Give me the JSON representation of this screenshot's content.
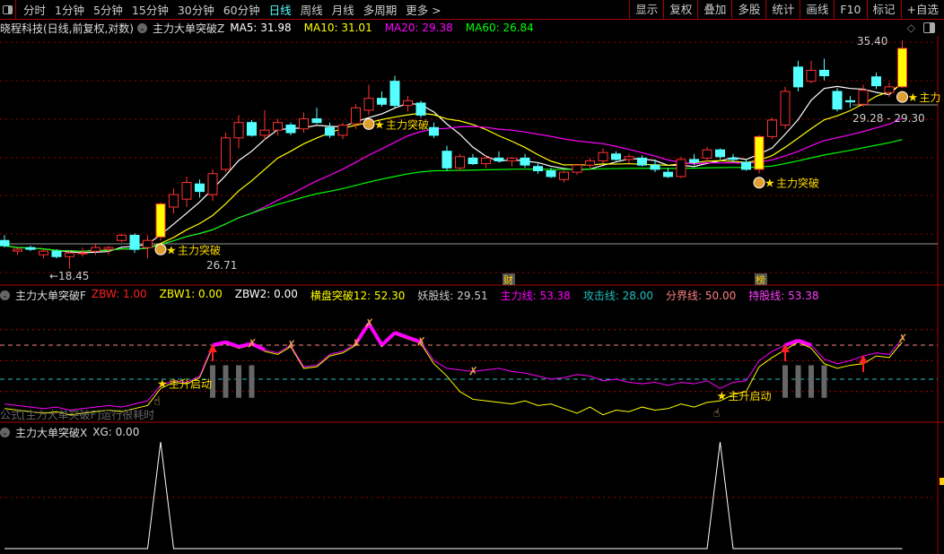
{
  "toolbar": {
    "periods": [
      "分时",
      "1分钟",
      "5分钟",
      "15分钟",
      "30分钟",
      "60分钟",
      "日线",
      "周线",
      "月线",
      "多周期",
      "更多 >"
    ],
    "active_period": "日线",
    "buttons": [
      "显示",
      "复权",
      "叠加",
      "多股",
      "统计",
      "画线",
      "F10",
      "标记",
      "+自选"
    ]
  },
  "main_header": {
    "stock": "晓程科技(日线,前复权,对数)",
    "indicator": "主力大单突破Z",
    "ma": [
      {
        "label": "MA5: 31.98",
        "color": "#ffffff"
      },
      {
        "label": "MA10: 31.01",
        "color": "#ffff00"
      },
      {
        "label": "MA20: 29.38",
        "color": "#ff00ff"
      },
      {
        "label": "MA60: 26.84",
        "color": "#00ff00"
      }
    ]
  },
  "ind_header": {
    "name": "主力大单突破F",
    "items": [
      {
        "label": "ZBW: 1.00",
        "color": "#ff2020"
      },
      {
        "label": "ZBW1: 0.00",
        "color": "#ffff00"
      },
      {
        "label": "ZBW2: 0.00",
        "color": "#ffffff"
      },
      {
        "label": "横盘突破12: 52.30",
        "color": "#ffff00"
      },
      {
        "label": "妖股线: 29.51",
        "color": "#cccccc"
      },
      {
        "label": "主力线: 53.38",
        "color": "#ff00ff"
      },
      {
        "label": "攻击线: 28.00",
        "color": "#20c0c0"
      },
      {
        "label": "分界线: 50.00",
        "color": "#ff8080"
      },
      {
        "label": "持股线: 53.38",
        "color": "#ff40ff"
      }
    ],
    "watermark": "公式[主力大单突破F]运行很耗时"
  },
  "xg_header": {
    "name": "主力大单突破X",
    "value": "XG: 0.00"
  },
  "colors": {
    "up": "#ff3232",
    "down": "#54ffff",
    "limit": "#ffff00",
    "ma5": "#ffffff",
    "ma10": "#ffff00",
    "ma20": "#ff00ff",
    "ma60": "#00ff00",
    "grid": "#a00000"
  },
  "annotations": {
    "high_label": "35.40",
    "low_label": "18.45",
    "range_label": "29.28 - 29.30",
    "ref_label": "26.71",
    "signal_main": "主力突破",
    "signal_main_short": "主力",
    "signal_ind": "主升启动",
    "events": [
      "财",
      "榜"
    ]
  },
  "chart_data": {
    "type": "candlestick",
    "scale": "log",
    "ohlc": [
      [
        20.0,
        20.3,
        19.6,
        19.7
      ],
      [
        19.4,
        19.6,
        19.2,
        19.5
      ],
      [
        19.6,
        19.7,
        19.4,
        19.5
      ],
      [
        19.2,
        19.5,
        19.0,
        19.4
      ],
      [
        19.4,
        19.5,
        19.0,
        19.1
      ],
      [
        19.1,
        19.4,
        18.45,
        19.3
      ],
      [
        19.3,
        19.6,
        19.1,
        19.3
      ],
      [
        19.4,
        19.8,
        19.2,
        19.6
      ],
      [
        19.5,
        19.7,
        19.2,
        19.6
      ],
      [
        20.0,
        20.4,
        19.9,
        20.3
      ],
      [
        20.3,
        20.4,
        19.3,
        19.5
      ],
      [
        19.6,
        20.3,
        19.0,
        20.0
      ],
      [
        20.2,
        22.3,
        20.0,
        22.2
      ],
      [
        22.0,
        23.2,
        21.6,
        22.8
      ],
      [
        22.5,
        24.0,
        22.0,
        23.6
      ],
      [
        23.5,
        23.8,
        22.6,
        23.0
      ],
      [
        22.8,
        24.5,
        22.4,
        24.2
      ],
      [
        24.5,
        27.2,
        24.3,
        26.8
      ],
      [
        26.8,
        28.6,
        26.0,
        28.0
      ],
      [
        28.0,
        28.2,
        26.9,
        27.0
      ],
      [
        27.0,
        29.0,
        26.6,
        27.4
      ],
      [
        27.4,
        28.3,
        27.0,
        28.0
      ],
      [
        27.8,
        28.0,
        27.0,
        27.2
      ],
      [
        27.5,
        28.8,
        27.2,
        28.3
      ],
      [
        28.3,
        29.2,
        27.9,
        28.0
      ],
      [
        27.6,
        28.0,
        26.8,
        27.0
      ],
      [
        27.0,
        28.0,
        26.7,
        27.8
      ],
      [
        27.9,
        29.5,
        27.5,
        29.2
      ],
      [
        29.0,
        31.2,
        28.6,
        30.0
      ],
      [
        30.0,
        30.6,
        29.3,
        29.5
      ],
      [
        31.5,
        32.0,
        29.2,
        29.4
      ],
      [
        29.4,
        30.2,
        28.9,
        29.8
      ],
      [
        29.6,
        29.8,
        28.4,
        28.6
      ],
      [
        27.6,
        28.0,
        26.8,
        27.0
      ],
      [
        25.8,
        26.2,
        24.4,
        24.6
      ],
      [
        24.6,
        25.6,
        24.4,
        25.4
      ],
      [
        25.3,
        25.6,
        24.8,
        24.9
      ],
      [
        24.9,
        25.5,
        24.6,
        25.3
      ],
      [
        25.3,
        25.8,
        25.0,
        25.1
      ],
      [
        25.1,
        25.4,
        24.7,
        25.3
      ],
      [
        25.3,
        25.6,
        24.6,
        24.8
      ],
      [
        24.7,
        25.0,
        24.2,
        24.4
      ],
      [
        24.4,
        24.6,
        23.9,
        24.0
      ],
      [
        23.8,
        24.4,
        23.6,
        24.3
      ],
      [
        24.3,
        24.9,
        24.1,
        24.8
      ],
      [
        24.8,
        25.3,
        24.6,
        25.1
      ],
      [
        25.1,
        26.0,
        24.9,
        25.7
      ],
      [
        25.6,
        25.8,
        25.1,
        25.2
      ],
      [
        25.2,
        25.6,
        24.9,
        25.4
      ],
      [
        25.3,
        25.5,
        24.7,
        24.8
      ],
      [
        24.8,
        25.2,
        24.3,
        24.5
      ],
      [
        24.3,
        24.6,
        23.9,
        24.0
      ],
      [
        24.0,
        25.4,
        23.9,
        25.2
      ],
      [
        25.2,
        25.6,
        24.8,
        25.0
      ],
      [
        25.3,
        26.1,
        25.0,
        25.9
      ],
      [
        25.9,
        26.0,
        25.2,
        25.4
      ],
      [
        25.3,
        25.6,
        25.0,
        25.2
      ],
      [
        25.0,
        25.2,
        24.4,
        24.5
      ],
      [
        24.5,
        27.0,
        24.2,
        26.9
      ],
      [
        26.9,
        28.4,
        26.7,
        28.2
      ],
      [
        27.8,
        31.0,
        27.5,
        30.6
      ],
      [
        32.8,
        33.4,
        30.6,
        31.0
      ],
      [
        31.5,
        33.4,
        31.3,
        32.5
      ],
      [
        32.5,
        33.6,
        31.6,
        32.0
      ],
      [
        30.6,
        30.9,
        28.9,
        29.1
      ],
      [
        29.8,
        30.2,
        29.2,
        29.7
      ],
      [
        29.5,
        31.2,
        29.28,
        30.7
      ],
      [
        31.9,
        32.3,
        30.8,
        31.1
      ],
      [
        30.5,
        31.4,
        30.1,
        31.0
      ],
      [
        31.0,
        35.4,
        30.9,
        34.6
      ]
    ],
    "limit_up": [
      12,
      58,
      69
    ],
    "signals_main": [
      12,
      28,
      58,
      69
    ],
    "ind_range": [
      0,
      76
    ],
    "ind_levels": [
      {
        "value": 60,
        "color": "#c00000"
      },
      {
        "value": 50,
        "color": "#ff8080"
      },
      {
        "value": 40,
        "color": "#c00000"
      },
      {
        "value": 28,
        "color": "#20c0c0"
      },
      {
        "value": 20,
        "color": "#c00000"
      }
    ],
    "ind_magenta": [
      12,
      11,
      10,
      9,
      10,
      8,
      9,
      10,
      11,
      10,
      12,
      14,
      24,
      27,
      26,
      30,
      50,
      52,
      49,
      51,
      47,
      45,
      50,
      36,
      37,
      44,
      46,
      51,
      64,
      50,
      58,
      55,
      52,
      40,
      35,
      34,
      33,
      34,
      35,
      33,
      32,
      30,
      28,
      29,
      31,
      30,
      27,
      28,
      26,
      25,
      26,
      24,
      26,
      25,
      27,
      22,
      26,
      27,
      40,
      46,
      50,
      53,
      50,
      41,
      38,
      40,
      43,
      45,
      44,
      54
    ],
    "ind_yellow": [
      9,
      8,
      7,
      6,
      7,
      5,
      6,
      7,
      8,
      7,
      9,
      11,
      22,
      26,
      25,
      29,
      49,
      51,
      48,
      50,
      46,
      44,
      49,
      35,
      36,
      43,
      45,
      50,
      63,
      49,
      57,
      54,
      51,
      38,
      30,
      20,
      15,
      14,
      13,
      12,
      14,
      11,
      12,
      9,
      6,
      10,
      5,
      8,
      7,
      10,
      8,
      9,
      12,
      10,
      13,
      14,
      18,
      20,
      36,
      42,
      47,
      52,
      48,
      38,
      35,
      37,
      38,
      43,
      42,
      52
    ],
    "ind_signals": [
      12,
      55
    ],
    "gray_bars": [
      16,
      17,
      18,
      19,
      60,
      61,
      62,
      63
    ],
    "up_arrows": [
      16,
      60,
      66
    ],
    "figures": [
      19,
      22,
      27,
      28,
      32,
      36,
      69
    ],
    "xg": [
      0,
      0,
      0,
      0,
      0,
      0,
      0,
      0,
      0,
      0,
      0,
      0,
      1,
      0,
      0,
      0,
      0,
      0,
      0,
      0,
      0,
      0,
      0,
      0,
      0,
      0,
      0,
      0,
      0,
      0,
      0,
      0,
      0,
      0,
      0,
      0,
      0,
      0,
      0,
      0,
      0,
      0,
      0,
      0,
      0,
      0,
      0,
      0,
      0,
      0,
      0,
      0,
      0,
      0,
      0,
      1,
      0,
      0,
      0,
      0,
      0,
      0,
      0,
      0,
      0,
      0,
      0,
      0,
      0,
      0
    ]
  }
}
